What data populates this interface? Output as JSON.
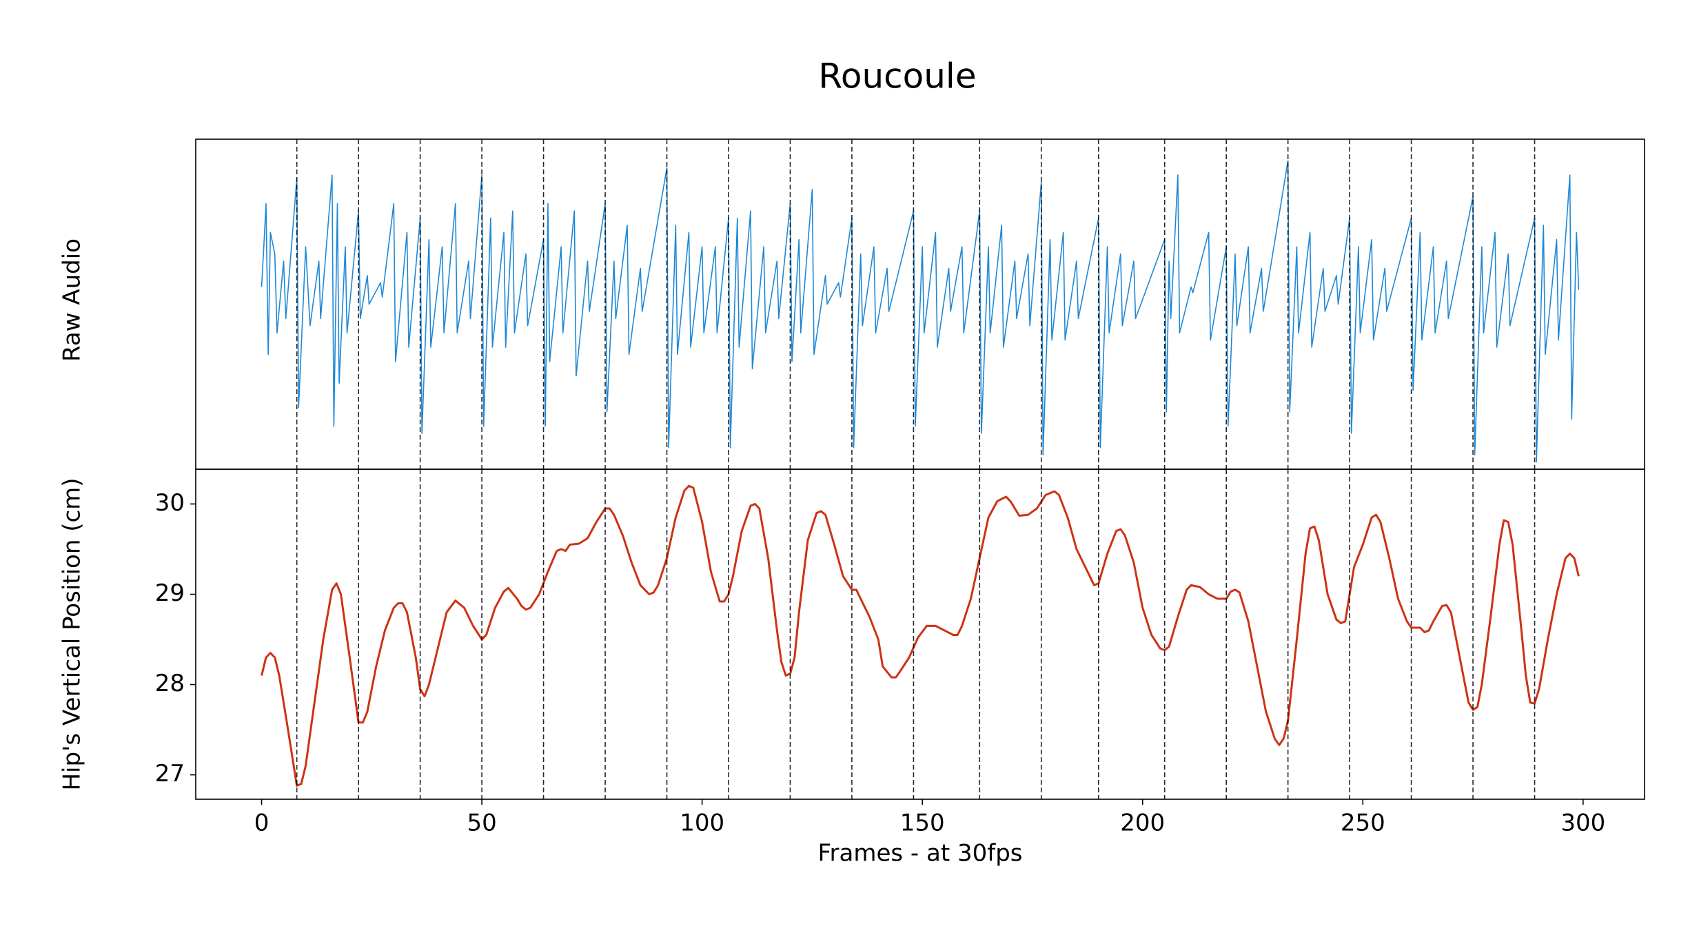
{
  "chart_data": [
    {
      "type": "line",
      "title": "Roucoule",
      "ylabel": "Raw Audio",
      "color": "#1f88d6",
      "xlim": [
        -14.95,
        313.95
      ],
      "ylim": [
        -1.25,
        1.05
      ],
      "vlines": [
        8,
        22,
        36,
        50,
        64,
        78,
        92,
        106,
        120,
        134,
        148,
        163,
        177,
        190,
        205,
        219,
        233,
        247,
        261,
        275,
        289
      ],
      "x": [
        0,
        0.5,
        1,
        1.5,
        2,
        3,
        3.5,
        5,
        5.5,
        8,
        8.4,
        10,
        11,
        13,
        13.4,
        16,
        16.4,
        17.2,
        17.6,
        19,
        19.4,
        22,
        22.4,
        24,
        24.4,
        27,
        27.4,
        30,
        30.4,
        33,
        33.4,
        36,
        36.4,
        38,
        38.4,
        41,
        41.4,
        44,
        44.4,
        47,
        47.4,
        50,
        50.4,
        52,
        52.4,
        55,
        55.4,
        57,
        57.4,
        60,
        60.4,
        64,
        64.4,
        65,
        65.4,
        68,
        68.4,
        71,
        71.4,
        74,
        74.4,
        78,
        78.4,
        80,
        80.4,
        83,
        83.4,
        86,
        86.4,
        92,
        92.4,
        94,
        94.4,
        97,
        97.4,
        100,
        100.4,
        103,
        103.4,
        106,
        106.4,
        108,
        108.4,
        111,
        111.4,
        114,
        114.4,
        117,
        117.4,
        120,
        120.4,
        122,
        122.4,
        125,
        125.4,
        128,
        128.4,
        131,
        131.4,
        134,
        134.4,
        136,
        136.4,
        139,
        139.4,
        142,
        142.4,
        148,
        148.4,
        150,
        150.4,
        153,
        153.4,
        156,
        156.4,
        159,
        159.4,
        163,
        163.4,
        165,
        165.4,
        168,
        168.4,
        171,
        171.4,
        174,
        174.4,
        177,
        177.4,
        179,
        179.4,
        182,
        182.4,
        185,
        185.4,
        190,
        190.4,
        192,
        192.4,
        195,
        195.4,
        198,
        198.4,
        205,
        205.4,
        206,
        206.4,
        208,
        208.4,
        211,
        211.4,
        215,
        215.4,
        219,
        219.4,
        221,
        221.4,
        224,
        224.4,
        227,
        227.4,
        233,
        233.4,
        235,
        235.4,
        238,
        238.4,
        241,
        241.4,
        244,
        244.4,
        247,
        247.4,
        249,
        249.4,
        252,
        252.4,
        255,
        255.4,
        261,
        261.4,
        263,
        263.4,
        266,
        266.4,
        269,
        269.4,
        275,
        275.4,
        277,
        277.4,
        280,
        280.4,
        283,
        283.4,
        289,
        289.4,
        291,
        291.4,
        294,
        294.4,
        297,
        297.4,
        298.5,
        299
      ],
      "values": [
        0.02,
        0.3,
        0.6,
        -0.45,
        0.4,
        0.25,
        -0.3,
        0.2,
        -0.2,
        0.78,
        -0.82,
        0.3,
        -0.25,
        0.2,
        -0.2,
        0.8,
        -0.95,
        0.6,
        -0.65,
        0.3,
        -0.3,
        0.55,
        -0.2,
        0.1,
        -0.1,
        0.05,
        -0.05,
        0.6,
        -0.5,
        0.4,
        -0.4,
        0.5,
        -1.0,
        0.35,
        -0.4,
        0.3,
        -0.3,
        0.6,
        -0.3,
        0.2,
        -0.2,
        0.8,
        -0.95,
        0.5,
        -0.4,
        0.4,
        -0.4,
        0.55,
        -0.3,
        0.25,
        -0.25,
        0.35,
        -0.95,
        0.6,
        -0.5,
        0.3,
        -0.3,
        0.55,
        -0.6,
        0.2,
        -0.15,
        0.6,
        -0.85,
        0.2,
        -0.2,
        0.45,
        -0.45,
        0.15,
        -0.15,
        0.85,
        -1.1,
        0.45,
        -0.45,
        0.4,
        -0.4,
        0.3,
        -0.3,
        0.3,
        -0.3,
        0.5,
        -1.1,
        0.5,
        -0.4,
        0.55,
        -0.55,
        0.3,
        -0.3,
        0.2,
        -0.2,
        0.6,
        -0.5,
        0.35,
        -0.3,
        0.7,
        -0.45,
        0.1,
        -0.1,
        0.05,
        -0.05,
        0.5,
        -1.1,
        0.25,
        -0.25,
        0.3,
        -0.3,
        0.15,
        -0.15,
        0.55,
        -0.95,
        0.3,
        -0.3,
        0.4,
        -0.4,
        0.15,
        -0.15,
        0.3,
        -0.3,
        0.55,
        -1.0,
        0.3,
        -0.3,
        0.45,
        -0.4,
        0.2,
        -0.2,
        0.25,
        -0.25,
        0.75,
        -1.15,
        0.35,
        -0.35,
        0.4,
        -0.35,
        0.2,
        -0.2,
        0.5,
        -1.1,
        0.3,
        -0.3,
        0.25,
        -0.25,
        0.2,
        -0.2,
        0.35,
        -0.85,
        0.2,
        -0.2,
        0.8,
        -0.3,
        0.02,
        -0.02,
        0.4,
        -0.35,
        0.3,
        -0.95,
        0.25,
        -0.25,
        0.3,
        -0.3,
        0.15,
        -0.15,
        0.9,
        -0.85,
        0.3,
        -0.3,
        0.4,
        -0.4,
        0.15,
        -0.15,
        0.1,
        -0.1,
        0.5,
        -1.0,
        0.3,
        -0.3,
        0.35,
        -0.35,
        0.15,
        -0.15,
        0.5,
        -0.7,
        0.4,
        -0.35,
        0.3,
        -0.3,
        0.2,
        -0.2,
        0.65,
        -1.15,
        0.3,
        -0.3,
        0.4,
        -0.4,
        0.25,
        -0.25,
        0.5,
        -1.2,
        0.45,
        -0.45,
        0.35,
        -0.35,
        0.8,
        -0.9,
        0.4,
        0.0
      ]
    },
    {
      "type": "line",
      "ylabel": "Hip's Vertical Position (cm)",
      "xlabel": "Frames - at 30fps",
      "color": "#cc3314",
      "xlim": [
        -14.95,
        313.95
      ],
      "xticks": [
        0,
        50,
        100,
        150,
        200,
        250,
        300
      ],
      "ylim": [
        26.73,
        30.385
      ],
      "yticks": [
        27,
        28,
        29,
        30
      ],
      "x": [
        0,
        1,
        2,
        3,
        4,
        6,
        8,
        9,
        10,
        12,
        14,
        16,
        17,
        18,
        20,
        22,
        23,
        24,
        26,
        28,
        30,
        31,
        32,
        33,
        35,
        36,
        37,
        38,
        40,
        42,
        44,
        46,
        48,
        50,
        51,
        53,
        55,
        56,
        58,
        59,
        60,
        61,
        63,
        65,
        67,
        68,
        69,
        70,
        72,
        74,
        76,
        78,
        79,
        80,
        82,
        84,
        86,
        88,
        89,
        90,
        92,
        94,
        96,
        97,
        98,
        100,
        102,
        104,
        105,
        106,
        107,
        109,
        111,
        112,
        113,
        115,
        117,
        118,
        119,
        120,
        121,
        122,
        124,
        126,
        127,
        128,
        130,
        132,
        134,
        135,
        136,
        138,
        140,
        141,
        143,
        144,
        145,
        147,
        149,
        151,
        153,
        155,
        157,
        158,
        159,
        161,
        163,
        165,
        167,
        169,
        170,
        172,
        174,
        176,
        178,
        180,
        181,
        183,
        185,
        187,
        189,
        190,
        192,
        194,
        195,
        196,
        198,
        200,
        202,
        204,
        205,
        206,
        208,
        210,
        211,
        213,
        215,
        217,
        219,
        220,
        221,
        222,
        224,
        226,
        228,
        230,
        231,
        232,
        233,
        235,
        237,
        238,
        239,
        240,
        242,
        244,
        245,
        246,
        248,
        250,
        252,
        253,
        254,
        256,
        258,
        260,
        261,
        263,
        264,
        265,
        266,
        268,
        269,
        270,
        272,
        274,
        275,
        276,
        277,
        279,
        281,
        282,
        283,
        284,
        286,
        287,
        288,
        289,
        290,
        292,
        294,
        296,
        297,
        298,
        299
      ],
      "values": [
        28.1,
        28.3,
        28.35,
        28.3,
        28.1,
        27.5,
        26.88,
        26.9,
        27.1,
        27.8,
        28.5,
        29.05,
        29.12,
        29.0,
        28.3,
        27.58,
        27.58,
        27.7,
        28.2,
        28.6,
        28.85,
        28.9,
        28.9,
        28.8,
        28.3,
        27.95,
        27.87,
        28.0,
        28.4,
        28.8,
        28.93,
        28.85,
        28.65,
        28.5,
        28.55,
        28.85,
        29.03,
        29.07,
        28.95,
        28.87,
        28.83,
        28.85,
        29.0,
        29.25,
        29.48,
        29.5,
        29.48,
        29.55,
        29.56,
        29.62,
        29.8,
        29.95,
        29.95,
        29.88,
        29.65,
        29.35,
        29.1,
        29.0,
        29.02,
        29.1,
        29.4,
        29.85,
        30.15,
        30.2,
        30.18,
        29.8,
        29.25,
        28.92,
        28.92,
        29.0,
        29.2,
        29.7,
        29.98,
        30.0,
        29.95,
        29.4,
        28.6,
        28.25,
        28.1,
        28.12,
        28.3,
        28.8,
        29.6,
        29.9,
        29.92,
        29.88,
        29.55,
        29.2,
        29.05,
        29.05,
        28.95,
        28.75,
        28.5,
        28.2,
        28.08,
        28.08,
        28.15,
        28.3,
        28.52,
        28.65,
        28.65,
        28.6,
        28.55,
        28.55,
        28.65,
        28.95,
        29.4,
        29.85,
        30.03,
        30.08,
        30.03,
        29.87,
        29.88,
        29.95,
        30.1,
        30.14,
        30.1,
        29.85,
        29.5,
        29.3,
        29.1,
        29.12,
        29.45,
        29.7,
        29.72,
        29.65,
        29.35,
        28.85,
        28.55,
        28.4,
        28.38,
        28.42,
        28.75,
        29.05,
        29.1,
        29.08,
        29.0,
        28.95,
        28.95,
        29.03,
        29.05,
        29.02,
        28.7,
        28.2,
        27.7,
        27.4,
        27.33,
        27.4,
        27.6,
        28.5,
        29.45,
        29.73,
        29.75,
        29.6,
        29.0,
        28.72,
        28.68,
        28.7,
        29.3,
        29.55,
        29.85,
        29.88,
        29.8,
        29.4,
        28.95,
        28.7,
        28.63,
        28.63,
        28.58,
        28.6,
        28.7,
        28.87,
        28.88,
        28.8,
        28.3,
        27.8,
        27.72,
        27.75,
        28.0,
        28.75,
        29.55,
        29.82,
        29.8,
        29.55,
        28.6,
        28.1,
        27.8,
        27.79,
        27.95,
        28.5,
        29.0,
        29.4,
        29.45,
        29.4,
        29.2
      ]
    }
  ]
}
